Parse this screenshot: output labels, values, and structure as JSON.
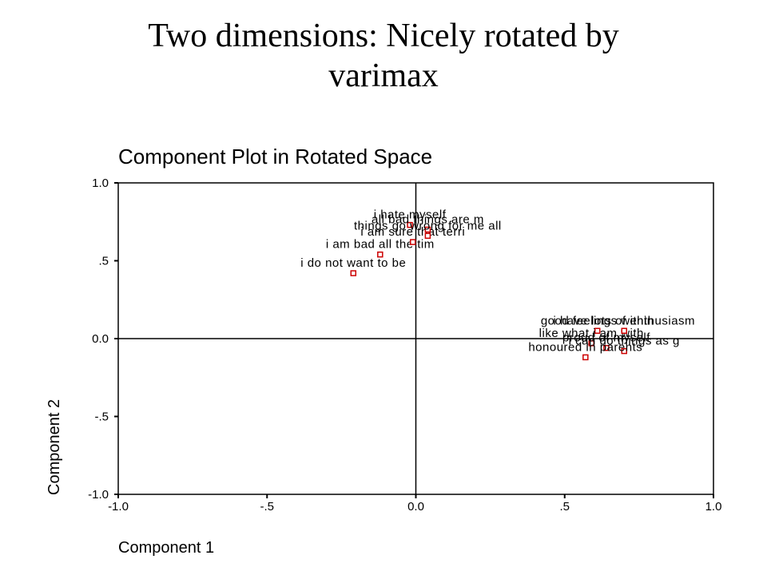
{
  "slide_title": "Two dimensions: Nicely rotated by varimax",
  "chart_data": {
    "type": "scatter",
    "title": "Component Plot in Rotated Space",
    "x_label": "Component 1",
    "y_label": "Component 2",
    "point_labels": [
      "i do not want to be",
      "i am bad all the tim",
      "i am sure that terri",
      "i hate myself",
      "all bad things are m",
      "things go wrong for me all",
      "good feelings within",
      "like what i am with",
      "i have lots of enthusiasm",
      "proud of myself",
      "i can do things as g",
      "honoured in parents"
    ],
    "x": [
      -0.21,
      -0.12,
      -0.01,
      -0.02,
      0.04,
      0.04,
      0.61,
      0.59,
      0.7,
      0.64,
      0.7,
      0.57
    ],
    "values": [
      0.42,
      0.54,
      0.62,
      0.73,
      0.7,
      0.66,
      0.05,
      -0.03,
      0.05,
      -0.06,
      -0.08,
      -0.12
    ],
    "color": "#cc0000",
    "xlim": [
      -1.0,
      1.0
    ],
    "ylim": [
      -1.0,
      1.0
    ],
    "xticks": [
      {
        "value": -1.0,
        "label": "-1.0"
      },
      {
        "value": -0.5,
        "label": "-.5"
      },
      {
        "value": 0,
        "label": "0.0"
      },
      {
        "value": 0.5,
        "label": ".5"
      },
      {
        "value": 1.0,
        "label": "1.0"
      }
    ],
    "yticks": [
      {
        "value": -1.0,
        "label": "-1.0"
      },
      {
        "value": -0.5,
        "label": "-.5"
      },
      {
        "value": 0,
        "label": "0.0"
      },
      {
        "value": 0.5,
        "label": ".5"
      },
      {
        "value": 1.0,
        "label": "1.0"
      }
    ]
  }
}
